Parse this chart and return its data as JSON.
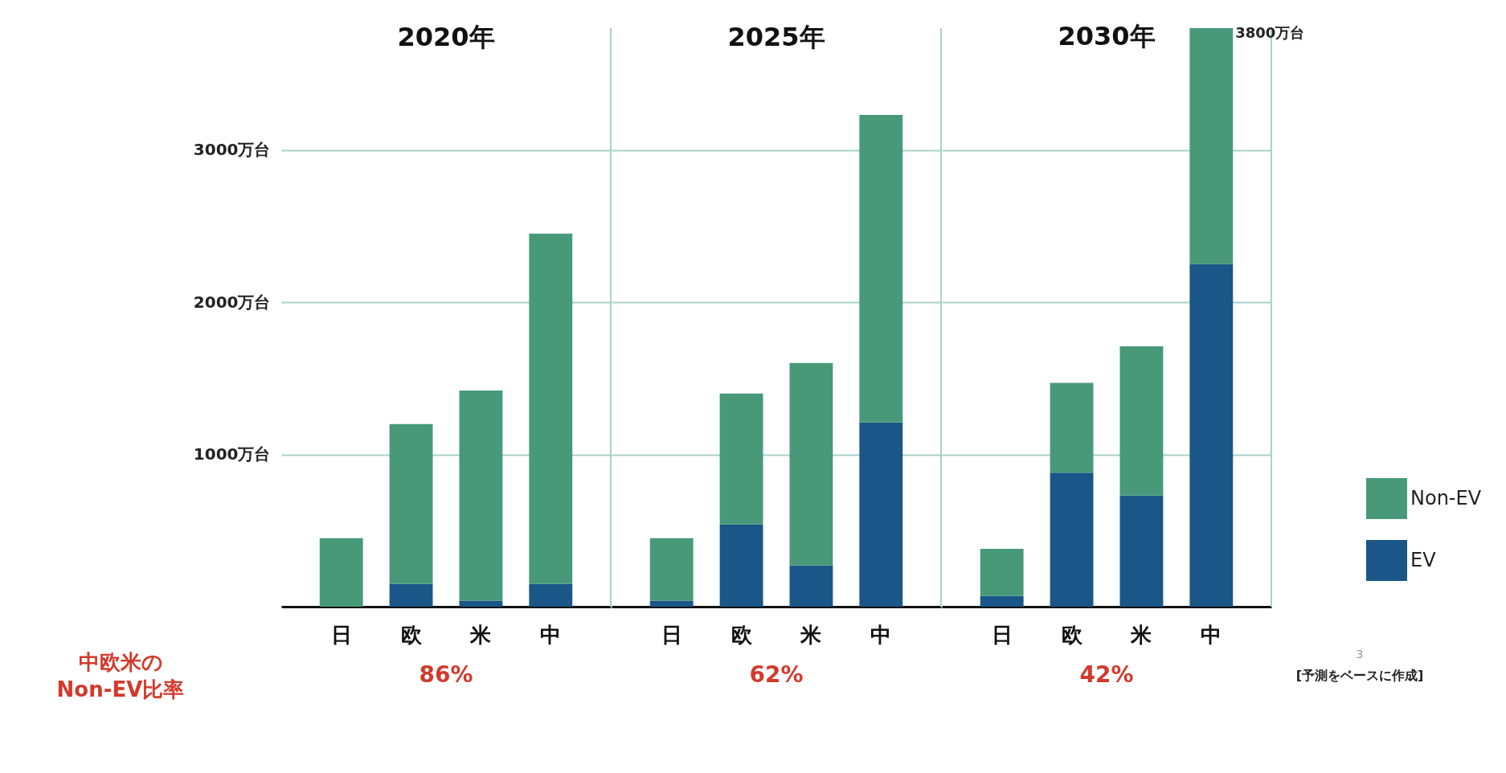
{
  "chart_data": [
    {
      "type": "bar",
      "title": "2020年",
      "categories": [
        "日",
        "欧",
        "米",
        "中"
      ],
      "stacked": true,
      "series": [
        {
          "name": "EV",
          "color": "#1a5687",
          "values": [
            0,
            150,
            40,
            150
          ]
        },
        {
          "name": "Non-EV",
          "color": "#47997a",
          "values": [
            450,
            1050,
            1380,
            2300
          ]
        }
      ],
      "ylim": [
        0,
        3800
      ],
      "yticks": [
        {
          "value": 1000,
          "label": "1000万台"
        },
        {
          "value": 2000,
          "label": "2000万台"
        },
        {
          "value": 3000,
          "label": "3000万台"
        }
      ],
      "grid": "y",
      "legend": "right",
      "annotations": [
        "86%",
        "中欧米の\nNon-EV比率"
      ]
    },
    {
      "type": "bar",
      "title": "2025年",
      "categories": [
        "日",
        "欧",
        "米",
        "中"
      ],
      "stacked": true,
      "series": [
        {
          "name": "EV",
          "color": "#1a5687",
          "values": [
            40,
            540,
            270,
            1210
          ]
        },
        {
          "name": "Non-EV",
          "color": "#47997a",
          "values": [
            410,
            860,
            1330,
            2020
          ]
        }
      ],
      "ylim": [
        0,
        3800
      ],
      "yticks": [
        1000,
        2000,
        3000
      ],
      "grid": "y",
      "tick_labels": "x",
      "legend": "right",
      "annotations": [
        "62%"
      ]
    },
    {
      "type": "bar",
      "title": "2030年",
      "categories": [
        "日",
        "欧",
        "米",
        "中"
      ],
      "stacked": true,
      "series": [
        {
          "name": "EV",
          "color": "#1a5687",
          "values": [
            70,
            880,
            730,
            2250
          ]
        },
        {
          "name": "Non-EV",
          "color": "#47997a",
          "values": [
            310,
            590,
            980,
            1550
          ]
        }
      ],
      "ylim": [
        0,
        3800
      ],
      "yticks": [
        1000,
        2000,
        3000
      ],
      "grid": "y",
      "tick_labels": "x",
      "legend": "right",
      "annotations": [
        "42%",
        {
          "text": "3800万台",
          "x": "中",
          "y": 3800
        },
        "3",
        "[予測をベースに作成]"
      ]
    }
  ]
}
